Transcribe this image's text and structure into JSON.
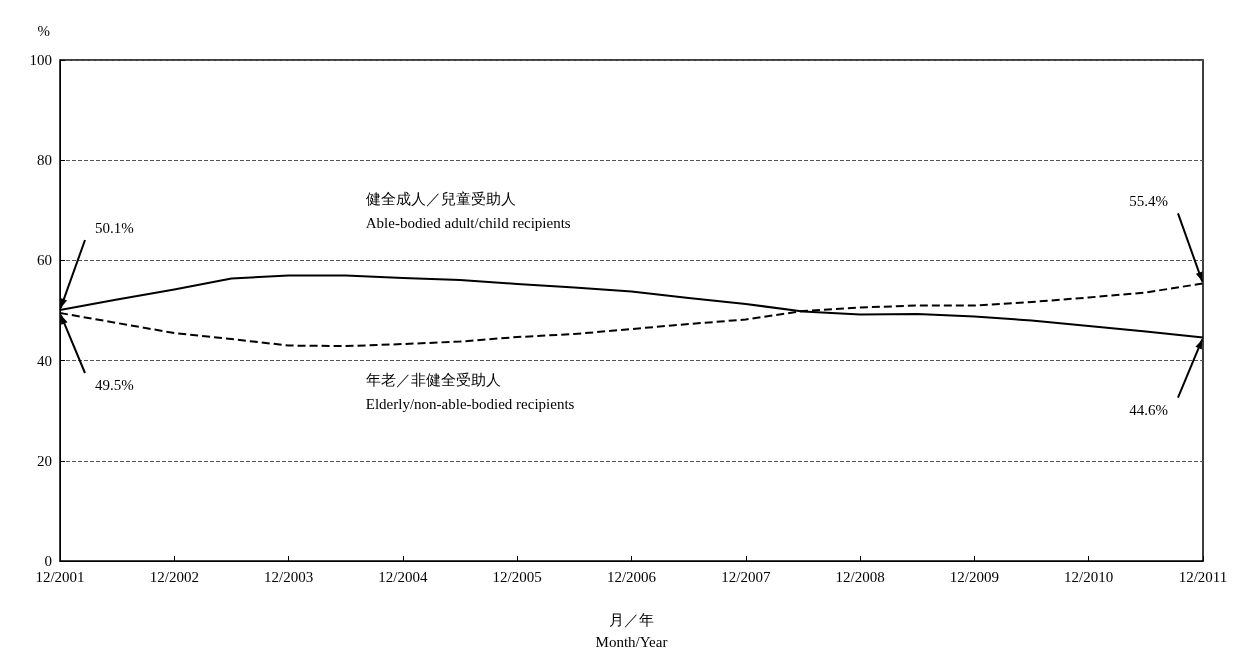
{
  "chart_data": {
    "type": "line",
    "xlabel": "月／年\nMonth/Year",
    "ylabel": "%",
    "categories": [
      "12/2001",
      null,
      "12/2002",
      null,
      "12/2003",
      null,
      "12/2004",
      null,
      "12/2005",
      null,
      "12/2006",
      null,
      "12/2007",
      null,
      "12/2008",
      null,
      "12/2009",
      null,
      "12/2010",
      null,
      "12/2011"
    ],
    "series": [
      {
        "name": "健全成人／兒童受助人\nAble-bodied adult/child recipients",
        "color": "#000000",
        "line_style": "solid",
        "values": [
          50.1,
          52.2,
          54.2,
          56.4,
          57,
          57,
          56.5,
          56.1,
          55.3,
          54.6,
          53.8,
          52.5,
          51.3,
          49.8,
          49.2,
          49.3,
          48.8,
          48.0,
          46.9,
          45.8,
          44.6
        ]
      },
      {
        "name": "年老／非健全受助人\nElderly/non-able-bodied recipients",
        "color": "#000000",
        "line_style": "dashed",
        "values": [
          49.5,
          47.5,
          45.5,
          44.3,
          43,
          42.9,
          43.3,
          43.8,
          44.7,
          45.3,
          46.3,
          47.3,
          48.2,
          49.9,
          50.6,
          51,
          51,
          51.7,
          52.6,
          53.6,
          55.4
        ]
      }
    ],
    "ylim": [
      0,
      100
    ],
    "yticks": [
      0,
      20,
      40,
      60,
      80,
      100
    ],
    "grid": "y",
    "marker": "none",
    "legend": false,
    "annotations": [
      {
        "text": "50.1%",
        "x": "12/2001",
        "y": 50.1
      },
      {
        "text": "49.5%",
        "x": "12/2001",
        "y": 49.5
      },
      {
        "text": "55.4%",
        "x": "12/2011",
        "y": 55.4
      },
      {
        "text": "44.6%",
        "x": "12/2011",
        "y": 44.6
      }
    ]
  }
}
